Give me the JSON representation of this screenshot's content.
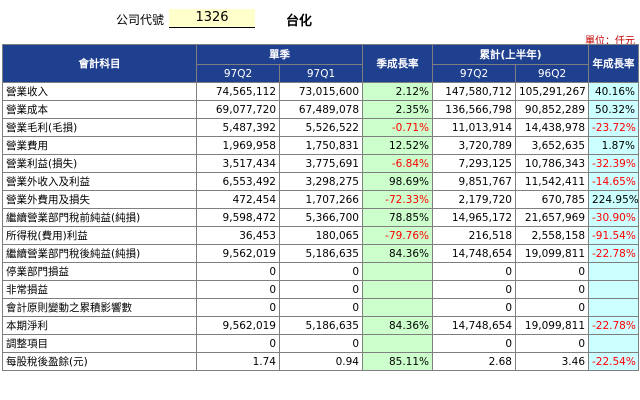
{
  "header": {
    "code_label": "公司代號",
    "code": "1326",
    "company": "台化"
  },
  "unit": "單位：仟元",
  "columns": {
    "item": "會計科目",
    "quarter_group": "單季",
    "qoq": "季成長率",
    "cumulative_group": "累計(上半年)",
    "yoy": "年成長率",
    "q_cur": "97Q2",
    "q_prev": "97Q1",
    "cum_cur": "97Q2",
    "cum_prev": "96Q2"
  },
  "rows": [
    {
      "label": "營業收入",
      "q_cur": "74,565,112",
      "q_prev": "73,015,600",
      "qoq": "2.12%",
      "cum_cur": "147,580,712",
      "cum_prev": "105,291,267",
      "yoy": "40.16%"
    },
    {
      "label": "營業成本",
      "q_cur": "69,077,720",
      "q_prev": "67,489,078",
      "qoq": "2.35%",
      "cum_cur": "136,566,798",
      "cum_prev": "90,852,289",
      "yoy": "50.32%"
    },
    {
      "label": "營業毛利(毛損)",
      "q_cur": "5,487,392",
      "q_prev": "5,526,522",
      "qoq": "-0.71%",
      "cum_cur": "11,013,914",
      "cum_prev": "14,438,978",
      "yoy": "-23.72%"
    },
    {
      "label": "營業費用",
      "q_cur": "1,969,958",
      "q_prev": "1,750,831",
      "qoq": "12.52%",
      "cum_cur": "3,720,789",
      "cum_prev": "3,652,635",
      "yoy": "1.87%"
    },
    {
      "label": "營業利益(損失)",
      "q_cur": "3,517,434",
      "q_prev": "3,775,691",
      "qoq": "-6.84%",
      "cum_cur": "7,293,125",
      "cum_prev": "10,786,343",
      "yoy": "-32.39%"
    },
    {
      "label": "營業外收入及利益",
      "q_cur": "6,553,492",
      "q_prev": "3,298,275",
      "qoq": "98.69%",
      "cum_cur": "9,851,767",
      "cum_prev": "11,542,411",
      "yoy": "-14.65%"
    },
    {
      "label": "營業外費用及損失",
      "q_cur": "472,454",
      "q_prev": "1,707,266",
      "qoq": "-72.33%",
      "cum_cur": "2,179,720",
      "cum_prev": "670,785",
      "yoy": "224.95%"
    },
    {
      "label": "繼續營業部門稅前純益(純損)",
      "q_cur": "9,598,472",
      "q_prev": "5,366,700",
      "qoq": "78.85%",
      "cum_cur": "14,965,172",
      "cum_prev": "21,657,969",
      "yoy": "-30.90%"
    },
    {
      "label": "所得稅(費用)利益",
      "q_cur": "36,453",
      "q_prev": "180,065",
      "qoq": "-79.76%",
      "cum_cur": "216,518",
      "cum_prev": "2,558,158",
      "yoy": "-91.54%"
    },
    {
      "label": "繼續營業部門稅後純益(純損)",
      "q_cur": "9,562,019",
      "q_prev": "5,186,635",
      "qoq": "84.36%",
      "cum_cur": "14,748,654",
      "cum_prev": "19,099,811",
      "yoy": "-22.78%"
    },
    {
      "label": "停業部門損益",
      "q_cur": "0",
      "q_prev": "0",
      "qoq": "",
      "cum_cur": "0",
      "cum_prev": "0",
      "yoy": ""
    },
    {
      "label": "非常損益",
      "q_cur": "0",
      "q_prev": "0",
      "qoq": "",
      "cum_cur": "0",
      "cum_prev": "0",
      "yoy": ""
    },
    {
      "label": "會計原則變動之累積影響數",
      "q_cur": "0",
      "q_prev": "0",
      "qoq": "",
      "cum_cur": "0",
      "cum_prev": "0",
      "yoy": ""
    },
    {
      "label": "本期淨利",
      "q_cur": "9,562,019",
      "q_prev": "5,186,635",
      "qoq": "84.36%",
      "cum_cur": "14,748,654",
      "cum_prev": "19,099,811",
      "yoy": "-22.78%"
    },
    {
      "label": "調整項目",
      "q_cur": "0",
      "q_prev": "0",
      "qoq": "",
      "cum_cur": "0",
      "cum_prev": "0",
      "yoy": ""
    },
    {
      "label": "每股稅後盈餘(元)",
      "q_cur": "1.74",
      "q_prev": "0.94",
      "qoq": "85.11%",
      "cum_cur": "2.68",
      "cum_prev": "3.46",
      "yoy": "-22.54%"
    }
  ]
}
